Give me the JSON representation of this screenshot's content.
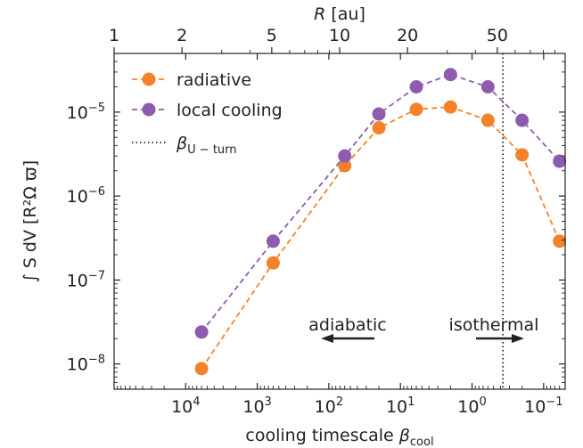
{
  "chart_data": {
    "type": "line",
    "xlabel": "cooling timescale",
    "xlabel_symbol": "β",
    "xlabel_subscript": "cool",
    "ylabel": "∫ S dV [R²Ω ϖ]",
    "top_xlabel": "[au]",
    "top_xlabel_symbol": "R",
    "x_scale": "log-reversed",
    "y_scale": "log",
    "xlim": [
      100000,
      0.05
    ],
    "ylim": [
      5e-09,
      5e-05
    ],
    "x_ticks": [
      {
        "value": 10000,
        "base": "10",
        "exp": "4"
      },
      {
        "value": 1000,
        "base": "10",
        "exp": "3"
      },
      {
        "value": 100,
        "base": "10",
        "exp": "2"
      },
      {
        "value": 10,
        "base": "10",
        "exp": "1"
      },
      {
        "value": 1,
        "base": "10",
        "exp": "0"
      },
      {
        "value": 0.1,
        "base": "10",
        "exp": "−1"
      }
    ],
    "y_ticks": [
      {
        "value": 1e-08,
        "base": "10",
        "exp": "−8"
      },
      {
        "value": 1e-07,
        "base": "10",
        "exp": "−7"
      },
      {
        "value": 1e-06,
        "base": "10",
        "exp": "−6"
      },
      {
        "value": 1e-05,
        "base": "10",
        "exp": "−5"
      }
    ],
    "top_ticks": [
      {
        "value": 1,
        "label": "1"
      },
      {
        "value": 2,
        "label": "2"
      },
      {
        "value": 5,
        "label": "5"
      },
      {
        "value": 10,
        "label": "10"
      },
      {
        "value": 20,
        "label": "20"
      },
      {
        "value": 50,
        "label": "50"
      }
    ],
    "top_axis_map": {
      "r_min": 1,
      "r_max": 100
    },
    "x": [
      6000,
      600,
      60,
      20,
      6,
      2,
      0.6,
      0.2,
      0.06
    ],
    "series": [
      {
        "name": "radiative",
        "color": "#f5822a",
        "values": [
          8.8e-09,
          1.6e-07,
          2.3e-06,
          6.5e-06,
          1.08e-05,
          1.15e-05,
          8e-06,
          3.1e-06,
          2.9e-07
        ]
      },
      {
        "name": "local cooling",
        "color": "#8e5bb0",
        "values": [
          2.4e-08,
          2.9e-07,
          3e-06,
          9.5e-06,
          2e-05,
          2.8e-05,
          2e-05,
          8e-06,
          2.6e-06
        ]
      }
    ],
    "vline": {
      "x": 0.37,
      "name": "β",
      "subscript": "U − turn",
      "style": "dotted",
      "color": "#222222"
    },
    "annotations": [
      {
        "text": "adiabatic",
        "arrow": "left"
      },
      {
        "text": "isothermal",
        "arrow": "right"
      }
    ],
    "legend": "top-left",
    "grid": false
  }
}
